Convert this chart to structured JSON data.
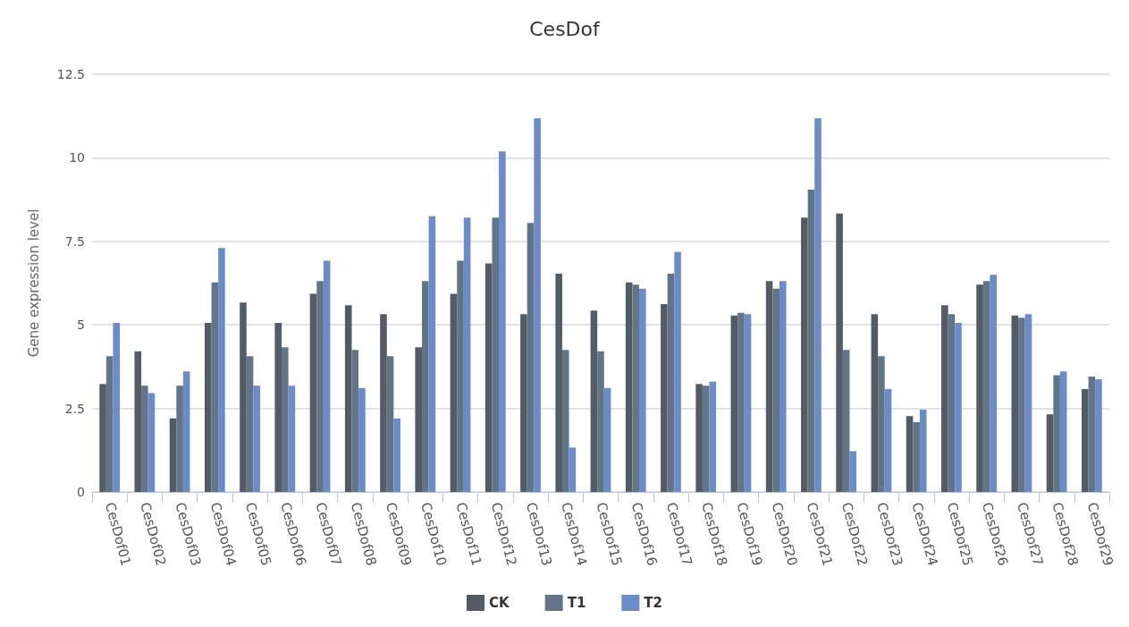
{
  "chart_data": {
    "type": "bar",
    "title": "CesDof",
    "ylabel": "Gene expression level",
    "categories": [
      "CesDof01",
      "CesDof02",
      "CesDof03",
      "CesDof04",
      "CesDof05",
      "CesDof06",
      "CesDof07",
      "CesDof08",
      "CesDof09",
      "CesDof10",
      "CesDof11",
      "CesDof12",
      "CesDof13",
      "CesDof14",
      "CesDof15",
      "CesDof16",
      "CesDof17",
      "CesDof18",
      "CesDof19",
      "CesDof20",
      "CesDof21",
      "CesDof22",
      "CesDof23",
      "CesDof24",
      "CesDof25",
      "CesDof26",
      "CesDof27",
      "CesDof28",
      "CesDof29"
    ],
    "series": [
      {
        "name": "CK",
        "color": "#535c65",
        "values": [
          3.23,
          4.21,
          2.2,
          5.06,
          5.67,
          5.06,
          5.93,
          5.59,
          5.32,
          4.33,
          5.93,
          6.84,
          5.32,
          6.53,
          5.43,
          6.27,
          5.62,
          3.23,
          5.28,
          6.31,
          8.21,
          8.33,
          5.32,
          2.27,
          5.59,
          6.2,
          5.28,
          2.32,
          3.08
        ]
      },
      {
        "name": "T1",
        "color": "#627586",
        "values": [
          4.06,
          3.18,
          3.18,
          6.27,
          4.06,
          4.33,
          6.31,
          4.25,
          4.06,
          6.31,
          6.92,
          8.21,
          8.05,
          4.25,
          4.21,
          6.2,
          6.53,
          3.18,
          5.36,
          6.08,
          9.05,
          4.25,
          4.06,
          2.09,
          5.32,
          6.31,
          5.21,
          3.49,
          3.45
        ]
      },
      {
        "name": "T2",
        "color": "#6b8cc9",
        "values": [
          5.06,
          2.96,
          3.61,
          7.3,
          3.18,
          3.18,
          6.92,
          3.11,
          2.2,
          8.25,
          8.21,
          10.19,
          11.18,
          1.33,
          3.11,
          6.08,
          7.18,
          3.3,
          5.32,
          6.31,
          11.18,
          1.22,
          3.08,
          2.46,
          5.06,
          6.5,
          5.32,
          3.61,
          3.37
        ]
      }
    ],
    "ylim": [
      0,
      12.5
    ],
    "yticks": [
      0,
      2.5,
      5,
      7.5,
      10,
      12.5
    ],
    "grid": "y",
    "legend": "bottom"
  }
}
